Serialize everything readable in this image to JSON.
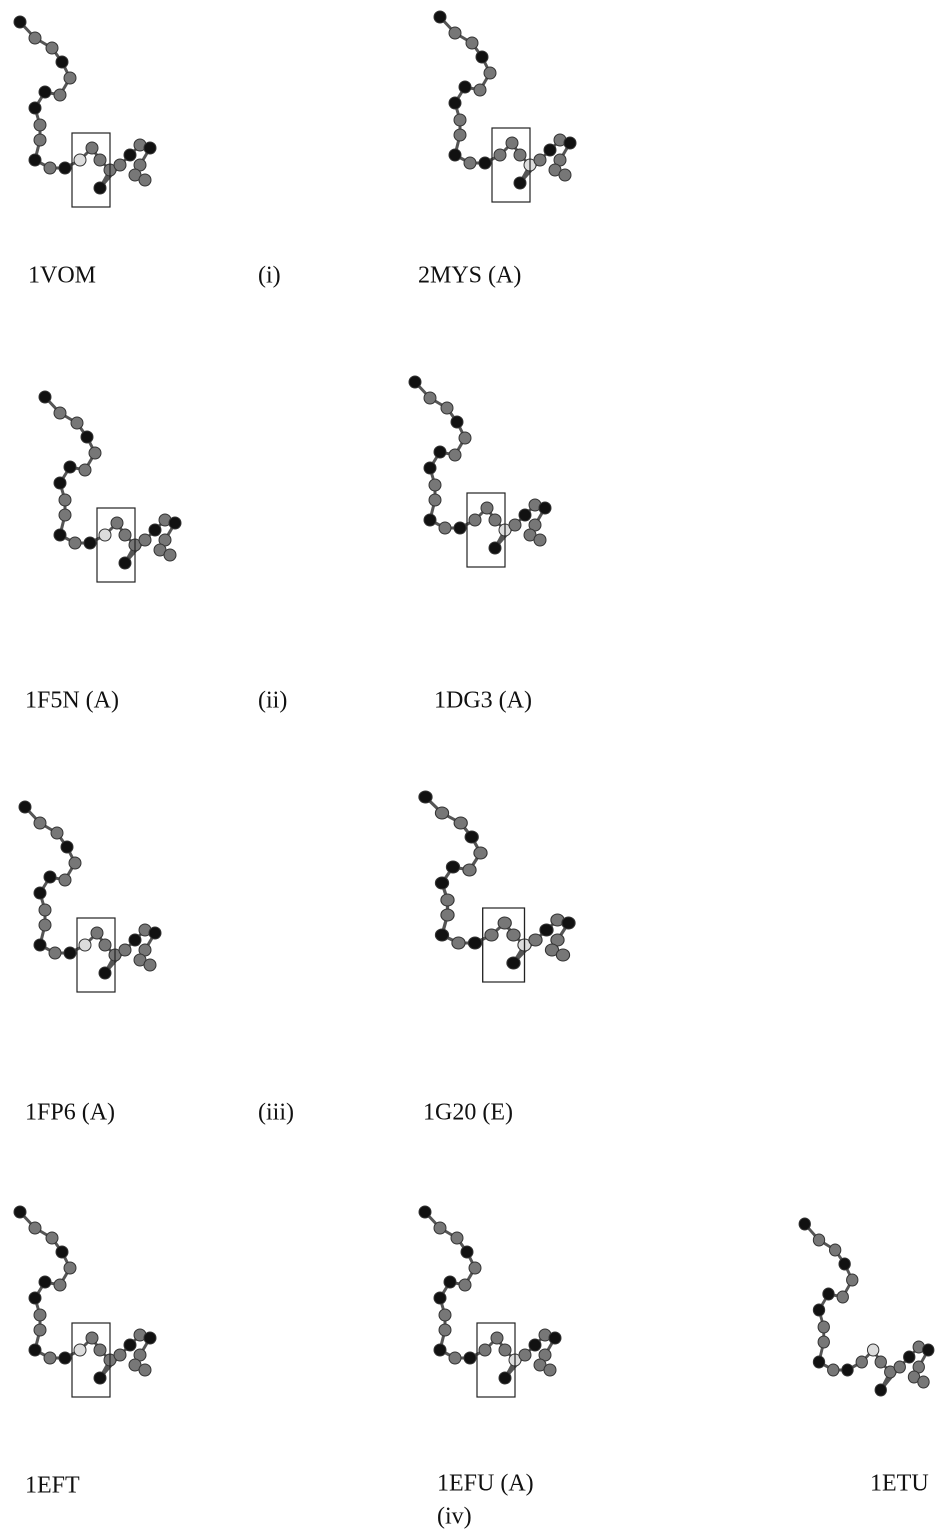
{
  "panels": [
    {
      "label": "1VOM"
    },
    {
      "label": "2MYS (A)"
    },
    {
      "label": "1F5N (A)"
    },
    {
      "label": "1DG3 (A)"
    },
    {
      "label": "1FP6 (A)"
    },
    {
      "label": "1G20 (E)"
    },
    {
      "label": "1EFT"
    },
    {
      "label": "1EFU (A)"
    },
    {
      "label": "1ETU"
    }
  ],
  "groups": [
    "(i)",
    "(ii)",
    "(iii)",
    "(iv)"
  ]
}
